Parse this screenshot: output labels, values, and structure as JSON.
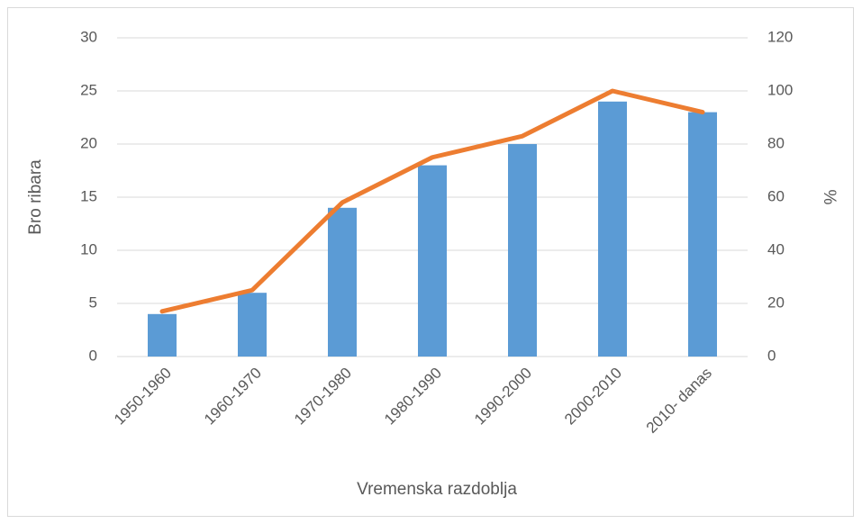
{
  "chart_data": {
    "type": "bar",
    "categories": [
      "1950-1960",
      "1960-1970",
      "1970-1980",
      "1980-1990",
      "1990-2000",
      "2000-2010",
      "2010- danas"
    ],
    "series": [
      {
        "type": "bar",
        "color": "#5b9bd5",
        "values": [
          4,
          6,
          14,
          18,
          20,
          24,
          23
        ]
      },
      {
        "type": "line",
        "axis": "y2",
        "color": "#ed7d31",
        "values": [
          17,
          25,
          58,
          75,
          83,
          100,
          92
        ]
      }
    ],
    "ylim": [
      0,
      30
    ],
    "yticks": [
      0,
      5,
      10,
      15,
      20,
      25,
      30
    ],
    "y2lim": [
      0,
      120
    ],
    "y2ticks": [
      0,
      20,
      40,
      60,
      80,
      100,
      120
    ],
    "ylabel": "Bro ribara",
    "y2label": "%",
    "xlabel": "Vremenska razdoblja",
    "grid": true
  }
}
